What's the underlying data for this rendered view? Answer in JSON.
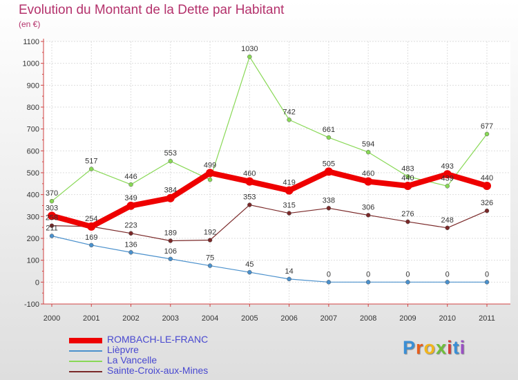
{
  "title": "Evolution du Montant de la Dette par Habitant",
  "subtitle": "(en €)",
  "logo": {
    "text": "Proxiti",
    "colors": [
      "#3a8fd6",
      "#e85e1c",
      "#f2b51c",
      "#6fbf3a",
      "#d43b3b",
      "#3a8fd6",
      "#9a4fc4"
    ]
  },
  "chart_data": {
    "type": "line",
    "x": [
      "2000",
      "2001",
      "2002",
      "2003",
      "2004",
      "2005",
      "2006",
      "2007",
      "2008",
      "2009",
      "2010",
      "2011"
    ],
    "ylim": [
      -100,
      1100
    ],
    "yticks": [
      -100,
      0,
      100,
      200,
      300,
      400,
      500,
      600,
      700,
      800,
      900,
      1000,
      1100
    ],
    "grid": true,
    "legend_position": "bottom-left",
    "series": [
      {
        "name": "ROMBACH-LE-FRANC",
        "color": "#ee0000",
        "values": [
          303,
          254,
          349,
          384,
          499,
          460,
          419,
          505,
          460,
          440,
          493,
          440
        ],
        "labels": [
          "303",
          "254",
          "349",
          "384",
          "499",
          "460",
          "419",
          "505",
          "460",
          "440",
          "493",
          "440"
        ]
      },
      {
        "name": "Lièpvre",
        "color": "#4a90cc",
        "values": [
          211,
          169,
          136,
          106,
          75,
          45,
          14,
          0,
          0,
          0,
          0,
          0
        ],
        "labels": [
          "211",
          "169",
          "136",
          "106",
          "75",
          "45",
          "14",
          "0",
          "0",
          "0",
          "0",
          "0"
        ]
      },
      {
        "name": "La Vancelle",
        "color": "#88d855",
        "values": [
          370,
          517,
          446,
          553,
          468,
          1030,
          742,
          661,
          594,
          483,
          439,
          677
        ],
        "labels": [
          "370",
          "517",
          "446",
          "553",
          "",
          "1030",
          "742",
          "661",
          "594",
          "483",
          "439",
          "677"
        ]
      },
      {
        "name": "Sainte-Croix-aux-Mines",
        "color": "#7a2828",
        "values": [
          258,
          254,
          223,
          189,
          192,
          353,
          315,
          338,
          306,
          276,
          248,
          326
        ],
        "labels": [
          "258",
          "",
          "223",
          "189",
          "192",
          "353",
          "315",
          "338",
          "306",
          "276",
          "248",
          "326"
        ]
      }
    ]
  }
}
